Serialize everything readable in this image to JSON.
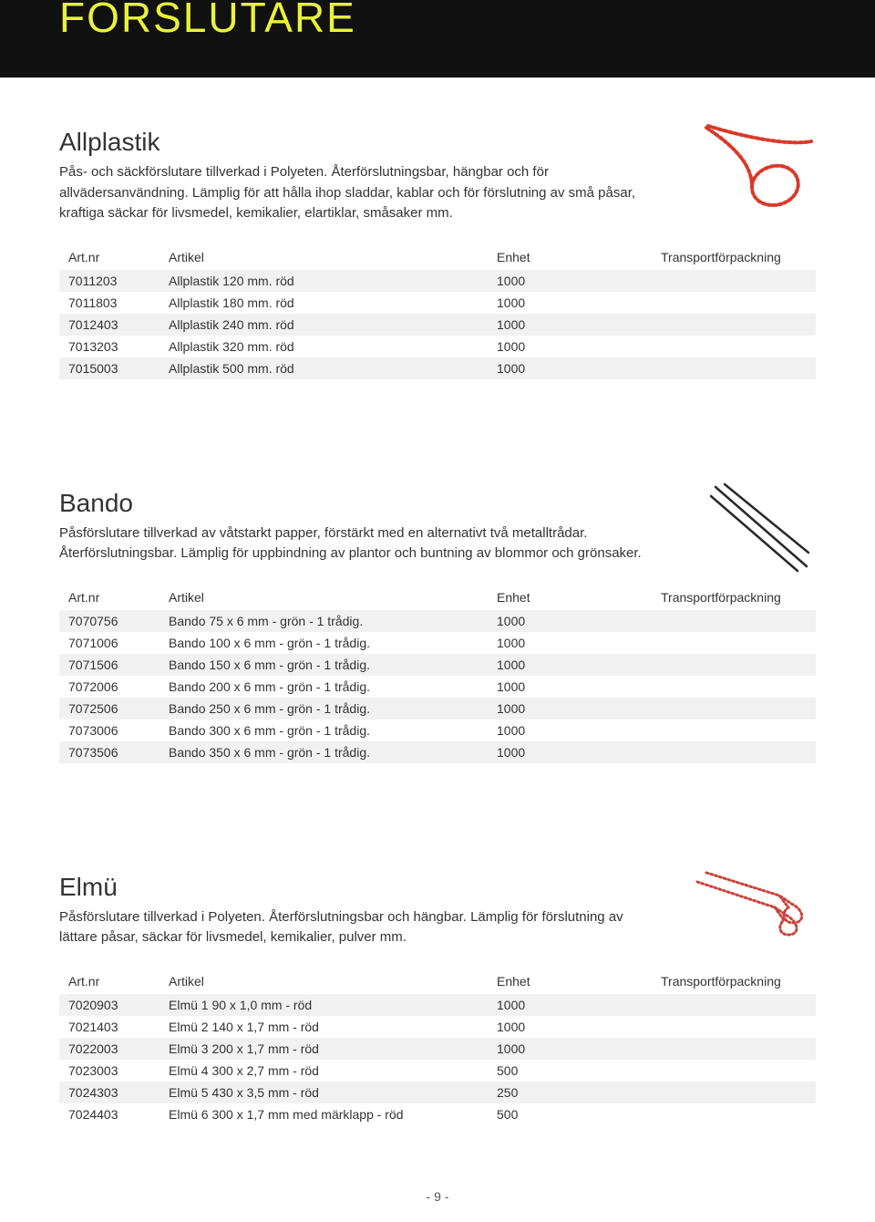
{
  "page": {
    "title": "FÖRSLUTARE",
    "footer": "- 9 -"
  },
  "columns": {
    "artnr": "Art.nr",
    "artikel": "Artikel",
    "enhet": "Enhet",
    "transport": "Transportförpackning"
  },
  "colors": {
    "header_bg": "#111111",
    "title_color": "#e8f23a",
    "band_bg": "#f1f1f1",
    "text": "#333333",
    "allplastik_red": "#d83a2a",
    "bando_dark": "#2a2a2a",
    "elmu_red": "#c9443a"
  },
  "sections": [
    {
      "title": "Allplastik",
      "desc": "Pås- och säckförslutare tillverkad i Polyeten. Återförslutningsbar, hängbar och för allvädersanvändning. Lämplig för att hålla ihop sladdar, kablar och för förslutning av små påsar, kraftiga säckar för livsmedel, kemikalier, elartiklar, småsaker mm.",
      "image_kind": "allplastik",
      "rows": [
        {
          "artnr": "7011203",
          "artikel": "Allplastik 120 mm. röd",
          "enhet": "1000",
          "transport": "",
          "band": true
        },
        {
          "artnr": "7011803",
          "artikel": "Allplastik 180 mm. röd",
          "enhet": "1000",
          "transport": "",
          "band": false
        },
        {
          "artnr": "7012403",
          "artikel": "Allplastik 240 mm. röd",
          "enhet": "1000",
          "transport": "",
          "band": true
        },
        {
          "artnr": "7013203",
          "artikel": "Allplastik 320 mm. röd",
          "enhet": "1000",
          "transport": "",
          "band": false
        },
        {
          "artnr": "7015003",
          "artikel": "Allplastik 500 mm. röd",
          "enhet": "1000",
          "transport": "",
          "band": true
        }
      ]
    },
    {
      "title": "Bando",
      "desc": "Påsförslutare tillverkad av våtstarkt papper, förstärkt med en alternativt två metalltrådar. Återförslutningsbar. Lämplig för uppbindning av plantor och buntning av blommor och grönsaker.",
      "image_kind": "bando",
      "rows": [
        {
          "artnr": "7070756",
          "artikel": "Bando   75 x 6 mm - grön - 1 trådig.",
          "enhet": "1000",
          "transport": "",
          "band": true
        },
        {
          "artnr": "7071006",
          "artikel": "Bando 100 x 6 mm - grön - 1 trådig.",
          "enhet": "1000",
          "transport": "",
          "band": false
        },
        {
          "artnr": "7071506",
          "artikel": "Bando 150 x 6 mm - grön - 1 trådig.",
          "enhet": "1000",
          "transport": "",
          "band": true
        },
        {
          "artnr": "7072006",
          "artikel": "Bando 200 x 6 mm - grön - 1 trådig.",
          "enhet": "1000",
          "transport": "",
          "band": false
        },
        {
          "artnr": "7072506",
          "artikel": "Bando 250 x 6 mm - grön - 1 trådig.",
          "enhet": "1000",
          "transport": "",
          "band": true
        },
        {
          "artnr": "7073006",
          "artikel": "Bando 300 x 6 mm - grön - 1 trådig.",
          "enhet": "1000",
          "transport": "",
          "band": false
        },
        {
          "artnr": "7073506",
          "artikel": "Bando 350 x 6 mm - grön - 1 trådig.",
          "enhet": "1000",
          "transport": "",
          "band": true
        }
      ]
    },
    {
      "title": "Elmü",
      "desc": "Påsförslutare tillverkad i Polyeten. Återförslutningsbar och hängbar. Lämplig för förslutning av lättare påsar, säckar för livsmedel, kemikalier, pulver mm.",
      "image_kind": "elmu",
      "rows": [
        {
          "artnr": "7020903",
          "artikel": "Elmü 1   90 x 1,0 mm - röd",
          "enhet": "1000",
          "transport": "",
          "band": true
        },
        {
          "artnr": "7021403",
          "artikel": "Elmü 2 140 x 1,7 mm - röd",
          "enhet": "1000",
          "transport": "",
          "band": false
        },
        {
          "artnr": "7022003",
          "artikel": "Elmü 3 200 x 1,7 mm - röd",
          "enhet": "1000",
          "transport": "",
          "band": true
        },
        {
          "artnr": "7023003",
          "artikel": "Elmü 4 300 x 2,7 mm - röd",
          "enhet": " 500",
          "transport": "",
          "band": false
        },
        {
          "artnr": "7024303",
          "artikel": "Elmü 5 430 x 3,5 mm - röd",
          "enhet": " 250",
          "transport": "",
          "band": true
        },
        {
          "artnr": "7024403",
          "artikel": "Elmü 6 300 x 1,7 mm med märklapp - röd",
          "enhet": " 500",
          "transport": "",
          "band": false
        }
      ]
    }
  ]
}
